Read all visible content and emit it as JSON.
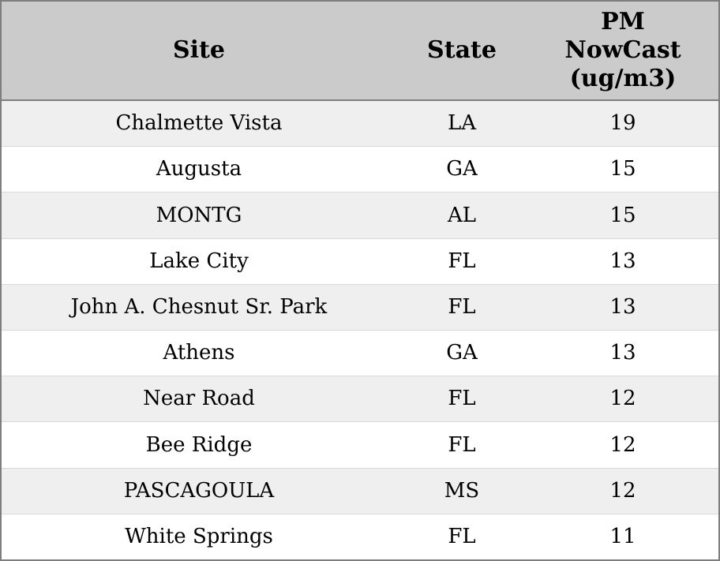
{
  "table": {
    "headers": [
      "Site",
      "State",
      "PM NowCast (ug/m3)"
    ],
    "rows": [
      {
        "site": "Chalmette Vista",
        "state": "LA",
        "pm": "19"
      },
      {
        "site": "Augusta",
        "state": "GA",
        "pm": "15"
      },
      {
        "site": "MONTG",
        "state": "AL",
        "pm": "15"
      },
      {
        "site": "Lake City",
        "state": "FL",
        "pm": "13"
      },
      {
        "site": "John A. Chesnut Sr. Park",
        "state": "FL",
        "pm": "13"
      },
      {
        "site": "Athens",
        "state": "GA",
        "pm": "13"
      },
      {
        "site": "Near Road",
        "state": "FL",
        "pm": "12"
      },
      {
        "site": "Bee Ridge",
        "state": "FL",
        "pm": "12"
      },
      {
        "site": "PASCAGOULA",
        "state": "MS",
        "pm": "12"
      },
      {
        "site": "White Springs",
        "state": "FL",
        "pm": "11"
      }
    ]
  },
  "chart_data": {
    "type": "table",
    "title": "",
    "columns": [
      "Site",
      "State",
      "PM NowCast (ug/m3)"
    ],
    "rows": [
      [
        "Chalmette Vista",
        "LA",
        19
      ],
      [
        "Augusta",
        "GA",
        15
      ],
      [
        "MONTG",
        "AL",
        15
      ],
      [
        "Lake City",
        "FL",
        13
      ],
      [
        "John A. Chesnut Sr. Park",
        "FL",
        13
      ],
      [
        "Athens",
        "GA",
        13
      ],
      [
        "Near Road",
        "FL",
        12
      ],
      [
        "Bee Ridge",
        "FL",
        12
      ],
      [
        "PASCAGOULA",
        "MS",
        12
      ],
      [
        "White Springs",
        "FL",
        11
      ]
    ]
  },
  "colors": {
    "header_bg": "#cbcbcb",
    "stripe_bg": "#efefef",
    "row_bg": "#ffffff",
    "border": "#7e7e7e",
    "row_divider": "#d9d9d9",
    "text": "#000000"
  }
}
